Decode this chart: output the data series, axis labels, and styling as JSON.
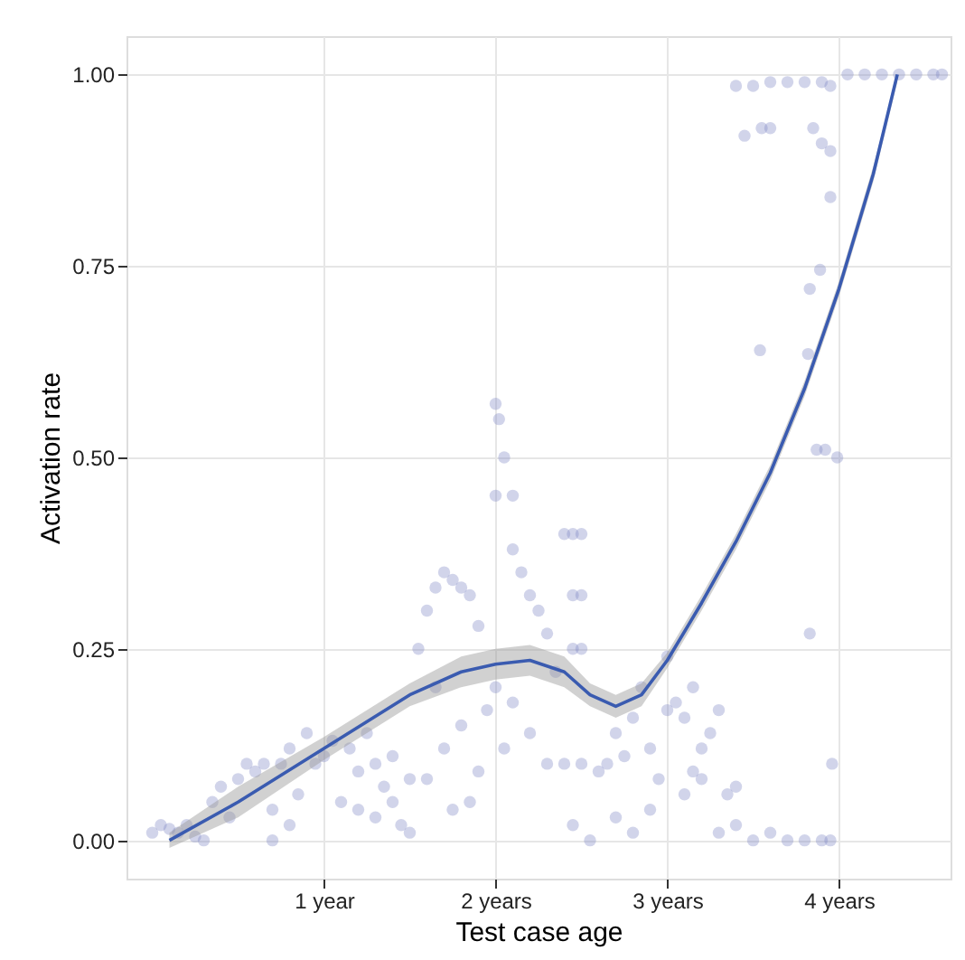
{
  "chart_data": {
    "type": "scatter",
    "xlabel": "Test case age",
    "ylabel": "Activation rate",
    "xlim": [
      -0.15,
      4.65
    ],
    "ylim": [
      -0.05,
      1.05
    ],
    "xticks": [
      {
        "value": 1,
        "label": "1 year"
      },
      {
        "value": 2,
        "label": "2 years"
      },
      {
        "value": 3,
        "label": "3 years"
      },
      {
        "value": 4,
        "label": "4 years"
      }
    ],
    "yticks": [
      {
        "value": 0,
        "label": "0.00"
      },
      {
        "value": 0.25,
        "label": "0.25"
      },
      {
        "value": 0.5,
        "label": "0.50"
      },
      {
        "value": 0.75,
        "label": "0.75"
      },
      {
        "value": 1,
        "label": "1.00"
      }
    ],
    "grid": true,
    "series": [
      {
        "marker": "circle",
        "color": "#7b83c4",
        "x": [
          0.0,
          0.05,
          0.1,
          0.15,
          0.2,
          0.25,
          0.3,
          0.35,
          0.4,
          0.45,
          0.5,
          0.55,
          0.6,
          0.65,
          0.7,
          0.75,
          0.8,
          0.85,
          0.9,
          0.95,
          1.0,
          0.7,
          0.8,
          1.05,
          1.1,
          1.15,
          1.2,
          1.25,
          1.3,
          1.35,
          1.4,
          1.45,
          1.5,
          1.2,
          1.3,
          1.4,
          1.5,
          1.55,
          1.6,
          1.65,
          1.7,
          1.75,
          1.8,
          1.85,
          1.9,
          1.6,
          1.7,
          1.8,
          1.9,
          1.95,
          1.65,
          1.75,
          1.85,
          2.0,
          2.02,
          2.05,
          2.0,
          2.1,
          2.1,
          2.15,
          2.2,
          2.25,
          2.0,
          2.05,
          2.1,
          2.2,
          2.3,
          2.3,
          2.35,
          2.4,
          2.45,
          2.5,
          2.45,
          2.5,
          2.45,
          2.5,
          2.4,
          2.5,
          2.45,
          2.55,
          2.6,
          2.65,
          2.7,
          2.7,
          2.8,
          2.85,
          2.9,
          2.95,
          2.9,
          2.8,
          2.75,
          3.0,
          3.0,
          3.05,
          3.1,
          3.15,
          3.2,
          3.25,
          3.3,
          3.35,
          3.4,
          3.1,
          3.2,
          3.3,
          3.4,
          3.15,
          3.4,
          3.5,
          3.6,
          3.7,
          3.8,
          3.9,
          3.95,
          3.45,
          3.55,
          3.6,
          3.85,
          3.9,
          3.95,
          3.95,
          3.83,
          3.89,
          3.82,
          3.87,
          3.92,
          3.99,
          3.54,
          3.83,
          3.96,
          3.5,
          3.6,
          3.7,
          3.8,
          3.9,
          3.95,
          4.05,
          4.15,
          4.25,
          4.35,
          4.45,
          4.55,
          4.6
        ],
        "values": [
          0.01,
          0.02,
          0.015,
          0.01,
          0.02,
          0.005,
          0.0,
          0.05,
          0.07,
          0.03,
          0.08,
          0.1,
          0.09,
          0.1,
          0.04,
          0.1,
          0.12,
          0.06,
          0.14,
          0.1,
          0.11,
          0.0,
          0.02,
          0.13,
          0.05,
          0.12,
          0.09,
          0.14,
          0.1,
          0.07,
          0.05,
          0.02,
          0.01,
          0.04,
          0.03,
          0.11,
          0.08,
          0.25,
          0.3,
          0.33,
          0.35,
          0.34,
          0.33,
          0.32,
          0.28,
          0.08,
          0.12,
          0.15,
          0.09,
          0.17,
          0.2,
          0.04,
          0.05,
          0.57,
          0.55,
          0.5,
          0.45,
          0.45,
          0.38,
          0.35,
          0.32,
          0.3,
          0.2,
          0.12,
          0.18,
          0.14,
          0.1,
          0.27,
          0.22,
          0.4,
          0.4,
          0.4,
          0.32,
          0.32,
          0.25,
          0.25,
          0.1,
          0.1,
          0.02,
          0.0,
          0.09,
          0.1,
          0.03,
          0.14,
          0.16,
          0.2,
          0.12,
          0.08,
          0.04,
          0.01,
          0.11,
          0.17,
          0.24,
          0.18,
          0.16,
          0.2,
          0.12,
          0.14,
          0.17,
          0.06,
          0.07,
          0.06,
          0.08,
          0.01,
          0.02,
          0.09,
          0.985,
          0.985,
          0.99,
          0.99,
          0.99,
          0.99,
          0.985,
          0.92,
          0.93,
          0.93,
          0.93,
          0.91,
          0.9,
          0.84,
          0.72,
          0.745,
          0.635,
          0.51,
          0.51,
          0.5,
          0.64,
          0.27,
          0.1,
          0.0,
          0.01,
          0.0,
          0.0,
          0.0,
          0.0,
          1.0,
          1.0,
          1.0,
          1.0,
          1.0,
          1.0,
          1.0
        ]
      },
      {
        "type": "line",
        "marker": "none",
        "line_style": "solid",
        "color": "#3a5bb0",
        "x": [
          0.1,
          0.5,
          1.0,
          1.5,
          1.8,
          2.0,
          2.2,
          2.4,
          2.55,
          2.7,
          2.85,
          3.0,
          3.2,
          3.4,
          3.6,
          3.8,
          4.0,
          4.2,
          4.34
        ],
        "values": [
          0.0,
          0.05,
          0.12,
          0.19,
          0.22,
          0.23,
          0.235,
          0.22,
          0.19,
          0.175,
          0.19,
          0.235,
          0.31,
          0.39,
          0.48,
          0.59,
          0.72,
          0.87,
          1.0
        ],
        "lower": [
          -0.01,
          0.03,
          0.105,
          0.175,
          0.2,
          0.21,
          0.215,
          0.2,
          0.175,
          0.16,
          0.175,
          0.225,
          0.3,
          0.38,
          0.47,
          0.58,
          0.71,
          0.86,
          0.99
        ],
        "upper": [
          0.01,
          0.07,
          0.135,
          0.205,
          0.24,
          0.25,
          0.255,
          0.24,
          0.205,
          0.19,
          0.205,
          0.245,
          0.32,
          0.4,
          0.49,
          0.6,
          0.73,
          0.88,
          1.0
        ]
      }
    ]
  }
}
